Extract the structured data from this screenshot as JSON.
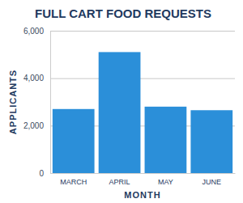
{
  "chart_data": {
    "type": "bar",
    "title": "FULL CART FOOD REQUESTS",
    "x_label": "MONTH",
    "y_label": "APPLICANTS",
    "categories": [
      "MARCH",
      "APRIL",
      "MAY",
      "JUNE"
    ],
    "values": [
      2700,
      5100,
      2800,
      2650
    ],
    "color": "#2b8fd9",
    "ylim": [
      0,
      6000
    ],
    "yticks": [
      0,
      {
        "value": 2000,
        "label": "2,000"
      },
      {
        "value": 4000,
        "label": "4,000"
      },
      {
        "value": 6000,
        "label": "6,000"
      }
    ],
    "grid": true
  }
}
